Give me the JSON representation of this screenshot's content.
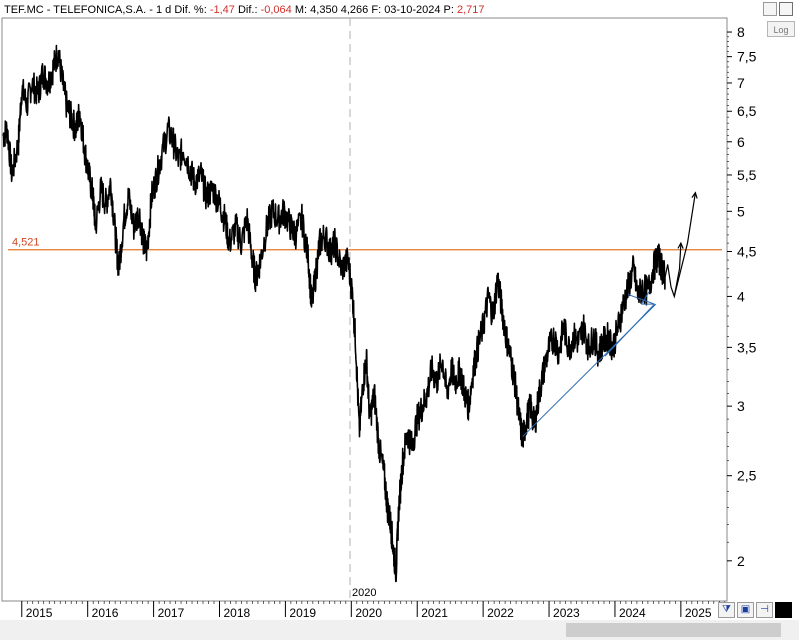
{
  "header": {
    "symbol": "TEF.MC - TELEFONICA,S.A. -",
    "period": "1 d",
    "diff_pct_label": "Dif. %:",
    "diff_pct_value": "-1,47",
    "diff_label": "Dif.:",
    "diff_value": "-0,064",
    "max_label": "M:",
    "max_value": "4,350",
    "low_value": "4,266",
    "date_label": "F:",
    "date_value": "03-10-2024",
    "p_label": "P:",
    "p_value": "2,717"
  },
  "toolbar": {
    "log_label": "Log"
  },
  "colors": {
    "price": "#000000",
    "support": "#e0742a",
    "support_label": "#d2451e",
    "trend": "#2a6ab0"
  },
  "chart_data": {
    "type": "line",
    "yscale": "log",
    "ylim": [
      1.8,
      8.3
    ],
    "xlim": [
      2014.7,
      2025.7
    ],
    "yticks": [
      {
        "v": 8,
        "label": "8"
      },
      {
        "v": 7.5,
        "label": "7,5"
      },
      {
        "v": 7,
        "label": "7"
      },
      {
        "v": 6.5,
        "label": "6,5"
      },
      {
        "v": 6,
        "label": "6"
      },
      {
        "v": 5.5,
        "label": "5,5"
      },
      {
        "v": 5,
        "label": "5"
      },
      {
        "v": 4.5,
        "label": "4,5"
      },
      {
        "v": 4,
        "label": "4"
      },
      {
        "v": 3.5,
        "label": "3,5"
      },
      {
        "v": 3,
        "label": "3"
      },
      {
        "v": 2.5,
        "label": "2,5"
      },
      {
        "v": 2,
        "label": "2"
      }
    ],
    "xticks": [
      {
        "v": 2015,
        "label": "2015"
      },
      {
        "v": 2016,
        "label": "2016"
      },
      {
        "v": 2017,
        "label": "2017"
      },
      {
        "v": 2018,
        "label": "2018"
      },
      {
        "v": 2019,
        "label": "2019"
      },
      {
        "v": 2020,
        "label": "2020"
      },
      {
        "v": 2021,
        "label": "2021"
      },
      {
        "v": 2022,
        "label": "2022"
      },
      {
        "v": 2023,
        "label": "2023"
      },
      {
        "v": 2024,
        "label": "2024"
      },
      {
        "v": 2025,
        "label": "2025"
      }
    ],
    "series": [
      {
        "points": [
          [
            2014.72,
            6.1
          ],
          [
            2014.78,
            6.2
          ],
          [
            2014.85,
            5.5
          ],
          [
            2014.95,
            6.0
          ],
          [
            2015.0,
            6.9
          ],
          [
            2015.08,
            6.6
          ],
          [
            2015.15,
            7.0
          ],
          [
            2015.25,
            6.8
          ],
          [
            2015.32,
            7.2
          ],
          [
            2015.4,
            7.0
          ],
          [
            2015.48,
            7.3
          ],
          [
            2015.55,
            7.6
          ],
          [
            2015.62,
            7.0
          ],
          [
            2015.68,
            6.6
          ],
          [
            2015.75,
            6.4
          ],
          [
            2015.82,
            6.2
          ],
          [
            2015.88,
            6.5
          ],
          [
            2015.95,
            5.9
          ],
          [
            2016.02,
            5.5
          ],
          [
            2016.08,
            5.2
          ],
          [
            2016.12,
            4.8
          ],
          [
            2016.2,
            5.3
          ],
          [
            2016.28,
            5.1
          ],
          [
            2016.35,
            5.4
          ],
          [
            2016.42,
            4.7
          ],
          [
            2016.47,
            4.3
          ],
          [
            2016.55,
            4.9
          ],
          [
            2016.62,
            5.2
          ],
          [
            2016.7,
            4.8
          ],
          [
            2016.78,
            5.0
          ],
          [
            2016.85,
            4.6
          ],
          [
            2016.9,
            4.5
          ],
          [
            2016.97,
            5.2
          ],
          [
            2017.05,
            5.5
          ],
          [
            2017.12,
            5.8
          ],
          [
            2017.22,
            6.2
          ],
          [
            2017.3,
            6.0
          ],
          [
            2017.38,
            5.7
          ],
          [
            2017.45,
            5.9
          ],
          [
            2017.55,
            5.6
          ],
          [
            2017.62,
            5.4
          ],
          [
            2017.72,
            5.5
          ],
          [
            2017.8,
            5.2
          ],
          [
            2017.9,
            5.3
          ],
          [
            2018.0,
            5.1
          ],
          [
            2018.08,
            4.9
          ],
          [
            2018.15,
            4.6
          ],
          [
            2018.25,
            4.8
          ],
          [
            2018.33,
            4.6
          ],
          [
            2018.42,
            4.9
          ],
          [
            2018.5,
            4.4
          ],
          [
            2018.55,
            4.2
          ],
          [
            2018.62,
            4.4
          ],
          [
            2018.72,
            4.8
          ],
          [
            2018.8,
            5.0
          ],
          [
            2018.9,
            4.9
          ],
          [
            2018.98,
            5.0
          ],
          [
            2019.08,
            4.8
          ],
          [
            2019.15,
            4.7
          ],
          [
            2019.25,
            4.9
          ],
          [
            2019.35,
            4.4
          ],
          [
            2019.4,
            3.9
          ],
          [
            2019.47,
            4.3
          ],
          [
            2019.52,
            4.6
          ],
          [
            2019.6,
            4.7
          ],
          [
            2019.68,
            4.5
          ],
          [
            2019.75,
            4.6
          ],
          [
            2019.85,
            4.3
          ],
          [
            2019.95,
            4.4
          ],
          [
            2020.02,
            4.0
          ],
          [
            2020.07,
            3.5
          ],
          [
            2020.12,
            2.8
          ],
          [
            2020.18,
            3.2
          ],
          [
            2020.23,
            3.4
          ],
          [
            2020.28,
            2.9
          ],
          [
            2020.35,
            3.1
          ],
          [
            2020.42,
            2.7
          ],
          [
            2020.5,
            2.5
          ],
          [
            2020.55,
            2.3
          ],
          [
            2020.6,
            2.2
          ],
          [
            2020.64,
            2.05
          ],
          [
            2020.68,
            1.95
          ],
          [
            2020.72,
            2.3
          ],
          [
            2020.78,
            2.6
          ],
          [
            2020.85,
            2.8
          ],
          [
            2020.92,
            2.7
          ],
          [
            2021.0,
            2.9
          ],
          [
            2021.08,
            3.0
          ],
          [
            2021.15,
            3.1
          ],
          [
            2021.22,
            3.3
          ],
          [
            2021.3,
            3.2
          ],
          [
            2021.38,
            3.4
          ],
          [
            2021.45,
            3.1
          ],
          [
            2021.52,
            3.3
          ],
          [
            2021.58,
            3.2
          ],
          [
            2021.65,
            3.3
          ],
          [
            2021.72,
            3.1
          ],
          [
            2021.78,
            3.0
          ],
          [
            2021.85,
            3.3
          ],
          [
            2021.92,
            3.5
          ],
          [
            2022.0,
            3.7
          ],
          [
            2022.08,
            4.0
          ],
          [
            2022.15,
            3.8
          ],
          [
            2022.22,
            4.2
          ],
          [
            2022.28,
            3.9
          ],
          [
            2022.35,
            3.6
          ],
          [
            2022.42,
            3.4
          ],
          [
            2022.48,
            3.2
          ],
          [
            2022.55,
            2.9
          ],
          [
            2022.6,
            2.75
          ],
          [
            2022.66,
            2.9
          ],
          [
            2022.72,
            3.0
          ],
          [
            2022.78,
            2.85
          ],
          [
            2022.85,
            3.1
          ],
          [
            2022.92,
            3.3
          ],
          [
            2023.0,
            3.5
          ],
          [
            2023.08,
            3.6
          ],
          [
            2023.15,
            3.45
          ],
          [
            2023.22,
            3.7
          ],
          [
            2023.3,
            3.5
          ],
          [
            2023.38,
            3.6
          ],
          [
            2023.45,
            3.55
          ],
          [
            2023.52,
            3.7
          ],
          [
            2023.6,
            3.5
          ],
          [
            2023.68,
            3.6
          ],
          [
            2023.75,
            3.45
          ],
          [
            2023.82,
            3.55
          ],
          [
            2023.9,
            3.6
          ],
          [
            2023.97,
            3.5
          ],
          [
            2024.05,
            3.7
          ],
          [
            2024.12,
            3.9
          ],
          [
            2024.2,
            4.1
          ],
          [
            2024.28,
            4.3
          ],
          [
            2024.35,
            4.0
          ],
          [
            2024.42,
            4.1
          ],
          [
            2024.5,
            4.05
          ],
          [
            2024.58,
            4.3
          ],
          [
            2024.65,
            4.45
          ],
          [
            2024.72,
            4.3
          ],
          [
            2024.76,
            4.2
          ]
        ]
      }
    ],
    "hline": {
      "value": 4.521,
      "label": "4,521"
    },
    "vline": {
      "x": 2019.98,
      "label": "2020"
    },
    "trendlines": [
      [
        [
          2022.6,
          2.77
        ],
        [
          2024.62,
          3.92
        ]
      ],
      [
        [
          2023.85,
          3.42
        ],
        [
          2024.6,
          3.92
        ]
      ],
      [
        [
          2024.4,
          3.92
        ],
        [
          2024.6,
          3.92
        ]
      ],
      [
        [
          2024.2,
          4.02
        ],
        [
          2024.6,
          3.92
        ]
      ],
      [
        [
          2024.4,
          3.92
        ],
        [
          2024.52,
          4.05
        ]
      ]
    ],
    "projection": [
      [
        2024.76,
        4.2
      ],
      [
        2024.8,
        4.35
      ],
      [
        2024.85,
        4.1
      ],
      [
        2024.9,
        4.0
      ],
      [
        2024.98,
        4.3
      ],
      [
        2025.0,
        4.6
      ]
    ],
    "projection2": [
      [
        2024.9,
        4.0
      ],
      [
        2025.1,
        4.6
      ],
      [
        2025.22,
        5.25
      ]
    ]
  }
}
